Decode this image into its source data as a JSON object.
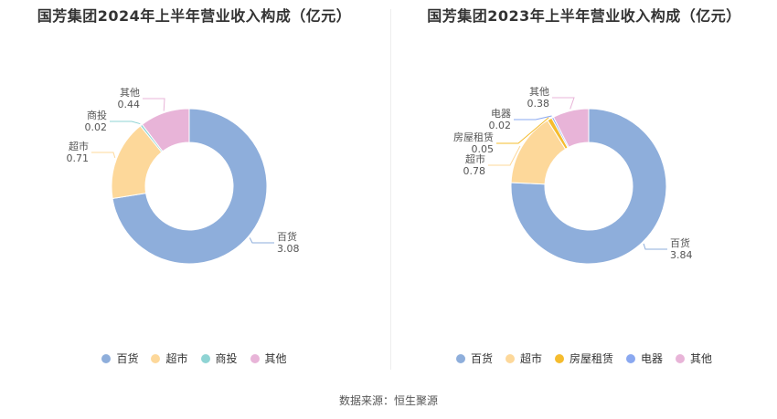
{
  "chart_data": [
    {
      "type": "pie",
      "title": "国芳集团2024年上半年营业收入构成（亿元）",
      "categories": [
        "百货",
        "超市",
        "商投",
        "其他"
      ],
      "values": [
        3.08,
        0.71,
        0.02,
        0.44
      ],
      "value_labels": [
        "3.08",
        "0.71",
        "0.02",
        "0.44"
      ],
      "colors": [
        "#8eaedb",
        "#fdd89a",
        "#8fd4d4",
        "#e8b4d8"
      ],
      "legend_position": "bottom"
    },
    {
      "type": "pie",
      "title": "国芳集团2023年上半年营业收入构成（亿元）",
      "categories": [
        "百货",
        "超市",
        "房屋租赁",
        "电器",
        "其他"
      ],
      "values": [
        3.84,
        0.78,
        0.05,
        0.02,
        0.38
      ],
      "value_labels": [
        "3.84",
        "0.78",
        "0.05",
        "0.02",
        "0.38"
      ],
      "colors": [
        "#8eaedb",
        "#fdd89a",
        "#f5bc2e",
        "#8aa8f0",
        "#e8b4d8"
      ],
      "legend_position": "bottom"
    }
  ],
  "footer": {
    "source": "数据来源：恒生聚源"
  }
}
